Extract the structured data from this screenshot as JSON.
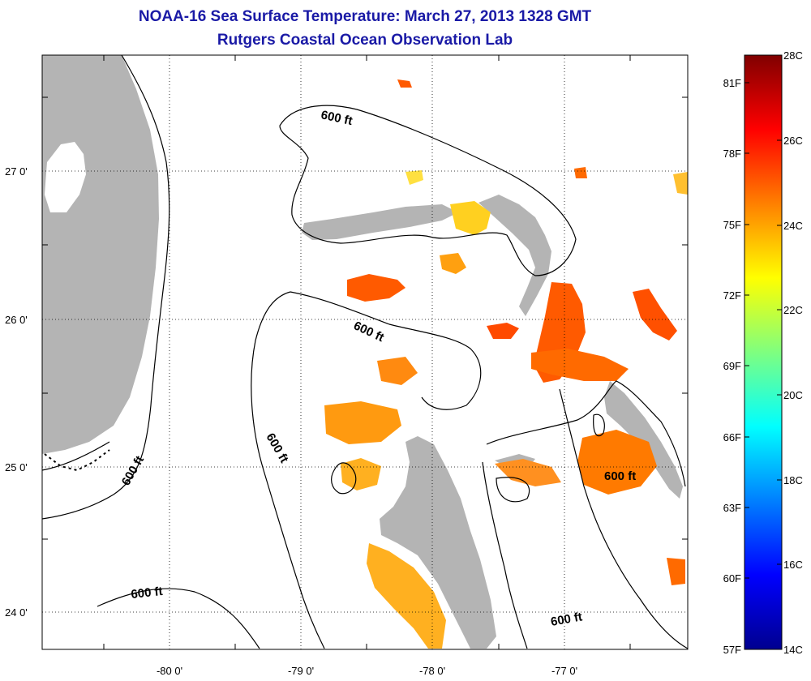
{
  "header": {
    "title": "NOAA-16 Sea Surface Temperature:  March 27, 2013 1328 GMT",
    "subtitle": "Rutgers Coastal Ocean Observation Lab"
  },
  "map": {
    "lon_ticks": [
      "-80 0'",
      "-79 0'",
      "-78 0'",
      "-77 0'"
    ],
    "lat_ticks": [
      "27 0'",
      "26 0'",
      "25 0'",
      "24 0'"
    ],
    "contour_label": "600 ft",
    "colors": {
      "land": "#b4b4b4",
      "grid": "#000000"
    }
  },
  "colorbar": {
    "celsius_labels": [
      "28C",
      "26C",
      "24C",
      "22C",
      "20C",
      "18C",
      "16C",
      "14C"
    ],
    "fahrenheit_labels": [
      "81F",
      "78F",
      "75F",
      "72F",
      "69F",
      "66F",
      "63F",
      "60F",
      "57F"
    ],
    "range_c": [
      14,
      28
    ],
    "colormap": "jet"
  }
}
